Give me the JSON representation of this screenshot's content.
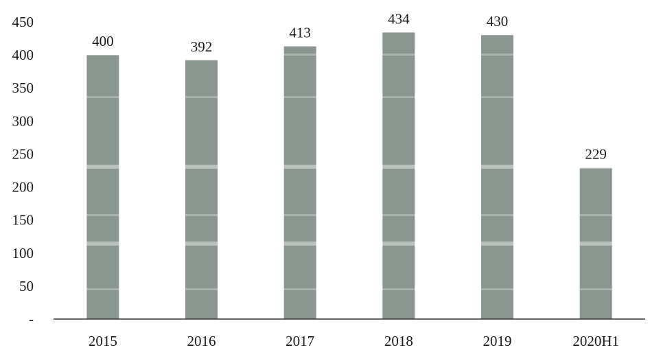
{
  "chart_data": {
    "type": "bar",
    "categories": [
      "2015",
      "2016",
      "2017",
      "2018",
      "2019",
      "2020H1"
    ],
    "values": [
      400,
      392,
      413,
      434,
      430,
      229
    ],
    "data_labels": [
      "400",
      "392",
      "413",
      "434",
      "430",
      "229"
    ],
    "title": "",
    "xlabel": "",
    "ylabel": "",
    "ylim": [
      0,
      450
    ],
    "yticks": [
      0,
      50,
      100,
      150,
      200,
      250,
      300,
      350,
      400,
      450
    ],
    "ytick_labels": [
      "-",
      "50",
      "100",
      "150",
      "200",
      "250",
      "300",
      "350",
      "400",
      "450"
    ],
    "grid": false,
    "legend": "none",
    "colors": {
      "bar": "#8a9690",
      "bar_stripe": "#a9b3ae",
      "axis": "#333333",
      "text": "#1a1a1a"
    }
  }
}
